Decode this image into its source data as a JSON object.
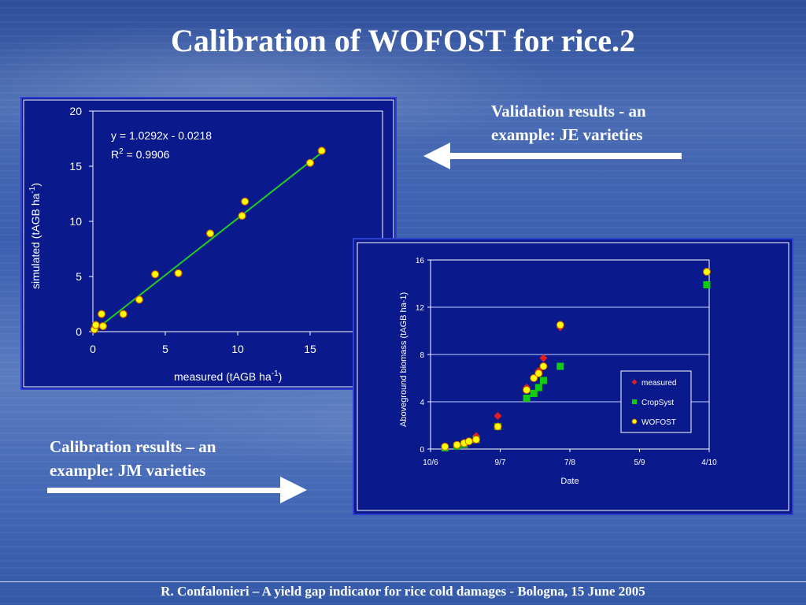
{
  "slide": {
    "title": "Calibration of WOFOST for rice.2",
    "caption_validation": [
      "Validation results - an",
      "example: JE varieties"
    ],
    "caption_calibration": [
      "Calibration results – an",
      "example: JM varieties"
    ],
    "footer": "R. Confalonieri – A yield gap indicator for rice cold damages - Bologna, 15 June 2005",
    "colors": {
      "panel_bg": "#0a1a8c",
      "fit_line": "#22cc22",
      "marker": "#ffff00",
      "measured": "#e02020",
      "cropsyst": "#11cc11"
    }
  },
  "chart_data": [
    {
      "type": "scatter",
      "xlabel": "measured (tAGB ha",
      "xlabel_sup": "-1",
      "xlabel_tail": ")",
      "ylabel": "simulated (tAGB ha",
      "ylabel_sup": "-1",
      "ylabel_tail": ")",
      "xlim": [
        0,
        20
      ],
      "ylim": [
        0,
        20
      ],
      "xticks": [
        0,
        5,
        10,
        15
      ],
      "yticks": [
        0,
        5,
        10,
        15,
        20
      ],
      "equation": "y = 1.0292x - 0.0218",
      "r2_prefix": "R",
      "r2_sup": "2",
      "r2_value": " = 0.9906",
      "trendline": {
        "slope": 1.0292,
        "intercept": -0.0218,
        "x_range": [
          0,
          15.9
        ]
      },
      "series": [
        {
          "x": [
            0.1,
            0.2,
            0.7,
            0.6,
            2.1,
            3.2,
            4.3,
            5.9,
            8.1,
            10.3,
            10.5,
            15.0,
            15.8
          ],
          "y": [
            0.2,
            0.6,
            0.5,
            1.6,
            1.6,
            2.9,
            5.2,
            5.3,
            8.9,
            10.5,
            11.8,
            15.3,
            16.4
          ]
        }
      ]
    },
    {
      "type": "scatter",
      "xlabel": "Date",
      "ylabel": "Aboveground biomass  (tAGB ha-1)",
      "x_ticks": [
        "10/6",
        "9/7",
        "7/8",
        "5/9",
        "4/10"
      ],
      "x_tick_days": [
        0,
        29,
        58,
        87,
        116
      ],
      "xlim": [
        0,
        116
      ],
      "ylim": [
        0,
        16
      ],
      "yticks": [
        0,
        4,
        8,
        12,
        16
      ],
      "legend_position": "right",
      "series": [
        {
          "name": "measured",
          "marker": "diamond",
          "x": [
            6,
            19,
            28,
            40,
            45,
            47,
            54
          ],
          "y": [
            0.25,
            1.1,
            2.8,
            5.2,
            6.6,
            7.7,
            10.3
          ]
        },
        {
          "name": "CropSyst",
          "marker": "square",
          "x": [
            6,
            11,
            14,
            19,
            28,
            40,
            43,
            45,
            47,
            54,
            115
          ],
          "y": [
            0.1,
            0.25,
            0.4,
            0.8,
            1.9,
            4.3,
            4.7,
            5.2,
            5.8,
            7.0,
            13.9
          ]
        },
        {
          "name": "WOFOST",
          "marker": "circle",
          "x": [
            6,
            11,
            14,
            16,
            19,
            28,
            40,
            43,
            45,
            47,
            54,
            115
          ],
          "y": [
            0.2,
            0.35,
            0.5,
            0.65,
            0.8,
            1.9,
            5.0,
            6.0,
            6.4,
            7.0,
            10.5,
            15.0
          ]
        }
      ]
    }
  ]
}
